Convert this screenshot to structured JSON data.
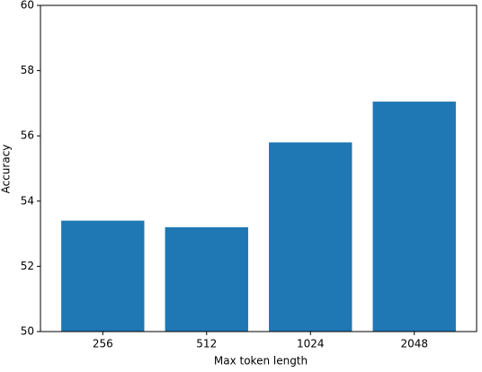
{
  "chart_data": {
    "type": "bar",
    "x_label": "Max token length",
    "y_label": "Accuracy",
    "categories": [
      "256",
      "512",
      "1024",
      "2048"
    ],
    "values": [
      53.4,
      53.2,
      55.8,
      57.05
    ],
    "color": "#1f77b4",
    "ylim": [
      50,
      60
    ],
    "yticks": [
      50,
      52,
      54,
      56,
      58,
      60
    ]
  }
}
